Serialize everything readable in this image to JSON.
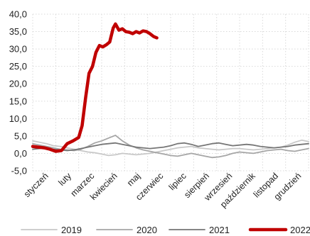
{
  "chart_data": {
    "type": "line",
    "title": "",
    "xlabel": "",
    "ylabel": "",
    "ylim": [
      -5,
      40
    ],
    "yticks": [
      "-5,0",
      "0,0",
      "5,0",
      "10,0",
      "15,0",
      "20,0",
      "25,0",
      "30,0",
      "35,0",
      "40,0"
    ],
    "categories": [
      "styczeń",
      "luty",
      "marzec",
      "kwiecień",
      "maj",
      "czerwiec",
      "lipiec",
      "sierpień",
      "wrzesień",
      "październik",
      "listopad",
      "grudzień"
    ],
    "grid": true,
    "legend_position": "bottom",
    "series": [
      {
        "name": "2019",
        "color": "#c8c8c8",
        "x": [
          0,
          0.3,
          0.6,
          0.9,
          1.2,
          1.5,
          1.8,
          2.1,
          2.4,
          2.7,
          3.0,
          3.3,
          3.6,
          3.9,
          4.2,
          4.5,
          4.8,
          5.1,
          5.4,
          5.7,
          6.0,
          6.3,
          6.6,
          6.9,
          7.2,
          7.5,
          7.8,
          8.1,
          8.4,
          8.7,
          9.0,
          9.3,
          9.6,
          9.9,
          10.2,
          10.5,
          10.8,
          11.1,
          11.4,
          11.7,
          12.0
        ],
        "values": [
          3.6,
          3.2,
          2.8,
          2.2,
          2.0,
          1.6,
          1.2,
          0.8,
          0.4,
          0.2,
          -0.2,
          -0.6,
          -0.4,
          0.0,
          -0.2,
          -0.4,
          -0.2,
          0.0,
          0.4,
          0.8,
          1.2,
          1.6,
          1.8,
          2.0,
          1.6,
          1.4,
          1.2,
          1.0,
          1.2,
          1.4,
          1.4,
          1.2,
          1.0,
          1.2,
          1.4,
          1.6,
          1.8,
          2.4,
          3.2,
          3.8,
          3.4
        ]
      },
      {
        "name": "2020",
        "color": "#a6a6a6",
        "x": [
          0,
          0.3,
          0.6,
          0.9,
          1.2,
          1.5,
          1.8,
          2.1,
          2.4,
          2.7,
          3.0,
          3.3,
          3.6,
          3.9,
          4.2,
          4.5,
          4.8,
          5.1,
          5.4,
          5.7,
          6.0,
          6.3,
          6.6,
          6.9,
          7.2,
          7.5,
          7.8,
          8.1,
          8.4,
          8.7,
          9.0,
          9.3,
          9.6,
          9.9,
          10.2,
          10.5,
          10.8,
          11.1,
          11.4,
          11.7,
          12.0
        ],
        "values": [
          2.8,
          2.4,
          2.0,
          1.6,
          1.2,
          1.0,
          0.8,
          1.2,
          2.0,
          3.0,
          3.6,
          4.4,
          5.2,
          3.6,
          2.4,
          1.6,
          1.0,
          0.6,
          0.2,
          -0.2,
          -0.6,
          -0.8,
          -0.4,
          0.0,
          -0.4,
          -0.8,
          -1.2,
          -1.0,
          -0.6,
          0.0,
          0.4,
          0.2,
          0.0,
          0.4,
          0.8,
          1.0,
          1.2,
          0.8,
          0.6,
          1.0,
          1.4
        ]
      },
      {
        "name": "2021",
        "color": "#767676",
        "x": [
          0,
          0.3,
          0.6,
          0.9,
          1.2,
          1.5,
          1.8,
          2.1,
          2.4,
          2.7,
          3.0,
          3.3,
          3.6,
          3.9,
          4.2,
          4.5,
          4.8,
          5.1,
          5.4,
          5.7,
          6.0,
          6.3,
          6.6,
          6.9,
          7.2,
          7.5,
          7.8,
          8.1,
          8.4,
          8.7,
          9.0,
          9.3,
          9.6,
          9.9,
          10.2,
          10.5,
          10.8,
          11.1,
          11.4,
          11.7,
          12.0
        ],
        "values": [
          1.2,
          1.4,
          1.6,
          1.2,
          1.0,
          0.8,
          1.0,
          1.4,
          1.8,
          2.2,
          2.6,
          2.8,
          3.0,
          2.6,
          2.2,
          1.8,
          1.6,
          1.4,
          1.6,
          1.8,
          2.2,
          2.8,
          3.0,
          2.6,
          2.0,
          2.4,
          2.8,
          3.0,
          2.6,
          2.2,
          2.4,
          2.6,
          2.4,
          2.0,
          1.8,
          1.6,
          1.8,
          2.0,
          2.4,
          2.6,
          2.8
        ]
      },
      {
        "name": "2022",
        "color": "#c00000",
        "x": [
          0,
          0.25,
          0.5,
          0.75,
          1.0,
          1.25,
          1.5,
          1.75,
          2.0,
          2.15,
          2.3,
          2.45,
          2.6,
          2.75,
          2.9,
          3.05,
          3.2,
          3.35,
          3.5,
          3.6,
          3.75,
          3.9,
          4.05,
          4.2,
          4.35,
          4.5,
          4.65,
          4.8,
          4.95,
          5.1,
          5.25,
          5.4
        ],
        "values": [
          2.0,
          1.8,
          1.6,
          1.2,
          0.6,
          0.8,
          2.8,
          3.6,
          4.6,
          8.0,
          16.0,
          23.0,
          25.0,
          29.0,
          31.0,
          30.6,
          31.2,
          32.0,
          36.0,
          37.2,
          35.4,
          35.8,
          35.0,
          34.8,
          34.4,
          35.0,
          34.6,
          35.2,
          35.0,
          34.4,
          33.6,
          33.2
        ]
      }
    ]
  }
}
